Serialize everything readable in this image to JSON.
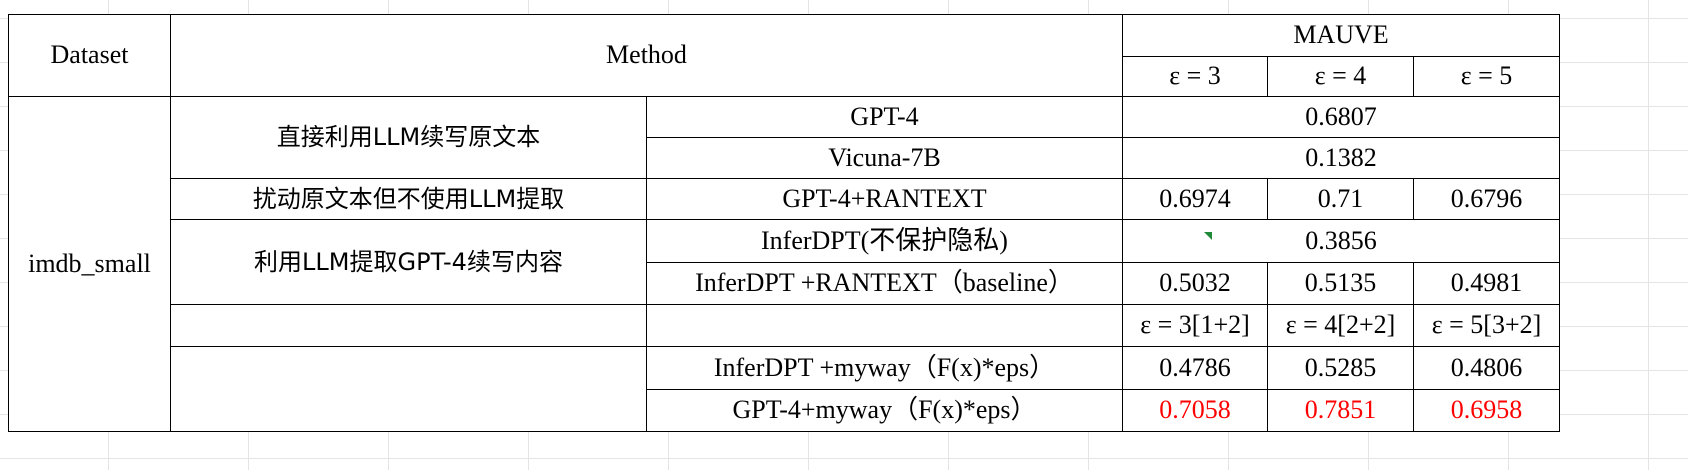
{
  "table": {
    "header": {
      "dataset": "Dataset",
      "method": "Method",
      "mauve": "MAUVE",
      "eps3": "ε = 3",
      "eps4": "ε = 4",
      "eps5": "ε = 5"
    },
    "dataset_name": "imdb_small",
    "groups": {
      "direct": "直接利用LLM续写原文本",
      "perturb": "扰动原文本但不使用LLM提取",
      "extract": "利用LLM提取GPT-4续写内容"
    },
    "rows": {
      "gpt4": {
        "model": "GPT-4",
        "merged": "0.6807"
      },
      "vicuna": {
        "model": "Vicuna-7B",
        "merged": "0.1382"
      },
      "gpt4_rantext": {
        "model": "GPT-4+RANTEXT",
        "v3": "0.6974",
        "v4": "0.71",
        "v5": "0.6796"
      },
      "inferdpt_np": {
        "model": "InferDPT(不保护隐私)",
        "merged": "0.3856"
      },
      "inferdpt_rantext": {
        "model": "InferDPT +RANTEXT（baseline）",
        "v3": "0.5032",
        "v4": "0.5135",
        "v5": "0.4981"
      },
      "subheader": {
        "v3": "ε = 3[1+2]",
        "v4": "ε = 4[2+2]",
        "v5": "ε = 5[3+2]"
      },
      "inferdpt_myway": {
        "model": "InferDPT +myway（F(x)*eps）",
        "v3": "0.4786",
        "v4": "0.5285",
        "v5": "0.4806"
      },
      "gpt4_myway": {
        "model": "GPT-4+myway（F(x)*eps）",
        "v3": "0.7058",
        "v4": "0.7851",
        "v5": "0.6958"
      }
    },
    "highlight_color": "#ff0000"
  }
}
